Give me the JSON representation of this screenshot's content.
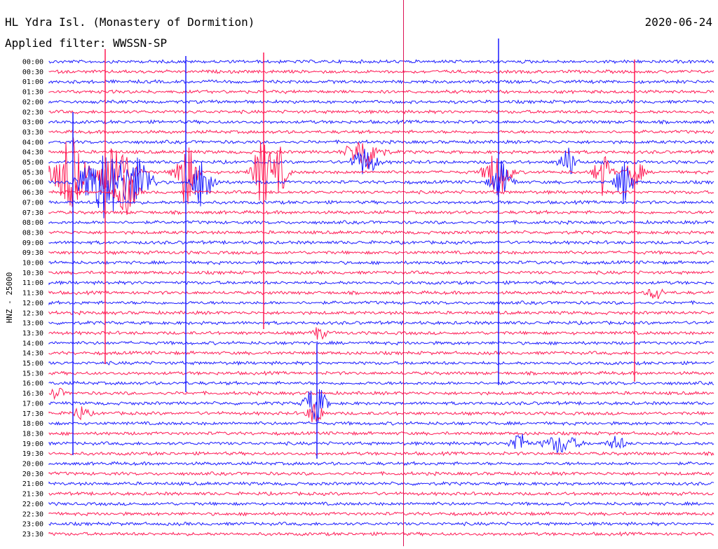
{
  "header": {
    "station": "HL Ydra Isl. (Monastery of Dormition)",
    "date": "2020-06-24",
    "filter": "Applied filter: WWSSN-SP"
  },
  "chart_data": {
    "type": "line",
    "title": "HL Ydra Isl. (Monastery of Dormition)",
    "subtitle": "Applied filter: WWSSN-SP",
    "ylabel": "HNZ - 25000",
    "xlabel": "",
    "date": "2020-06-24",
    "row_labels": [
      "00:00",
      "00:30",
      "01:00",
      "01:30",
      "02:00",
      "02:30",
      "03:00",
      "03:30",
      "04:00",
      "04:30",
      "05:00",
      "05:30",
      "06:00",
      "06:30",
      "07:00",
      "07:30",
      "08:00",
      "08:30",
      "09:00",
      "09:30",
      "10:00",
      "10:30",
      "11:00",
      "11:30",
      "12:00",
      "12:30",
      "13:00",
      "13:30",
      "14:00",
      "14:30",
      "15:00",
      "15:30",
      "16:00",
      "16:30",
      "17:00",
      "17:30",
      "18:00",
      "18:30",
      "19:00",
      "19:30",
      "20:00",
      "20:30",
      "21:00",
      "21:30",
      "22:00",
      "22:30",
      "23:00",
      "23:30"
    ],
    "colors": {
      "even": "#1a1aff",
      "odd": "#ff1a55",
      "marker": "#dd1155"
    },
    "grid": false,
    "legend": "none"
  }
}
